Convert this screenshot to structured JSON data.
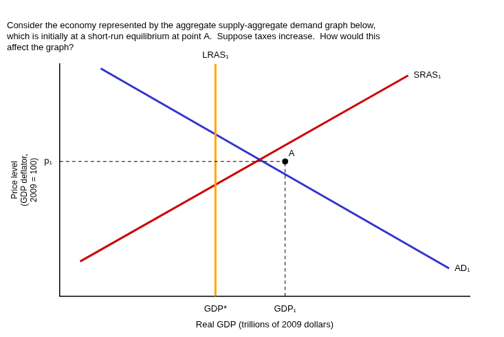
{
  "chart_data": {
    "type": "line",
    "title": "Consider the economy represented by the aggregate supply-aggregate demand graph below,\nwhich is initially at a short-run equilibrium at point A.  Suppose taxes increase.  How would this\naffect the graph?",
    "xlabel": "Real GDP (trillions of 2009 dollars)",
    "ylabel": "Price level\n(GDP deflator,\n2009 = 100)",
    "xlim": [
      0,
      10
    ],
    "ylim": [
      0,
      10
    ],
    "xticks": [
      {
        "value": 3.8,
        "label": "GDP*"
      },
      {
        "value": 5.5,
        "label": "GDP₁"
      }
    ],
    "yticks": [
      {
        "value": 5.8,
        "label": "p₁"
      }
    ],
    "grid": false,
    "series": [
      {
        "color": "#000000",
        "line_style": "dashed",
        "x": [
          0,
          5.5
        ],
        "values": [
          5.8,
          5.8
        ]
      },
      {
        "color": "#000000",
        "line_style": "dashed",
        "x": [
          5.5,
          5.5
        ],
        "values": [
          0,
          5.8
        ]
      },
      {
        "name": "LRAS₁",
        "color": "#FFA500",
        "line_style": "solid",
        "x": [
          3.8,
          3.8
        ],
        "values": [
          0,
          10
        ]
      },
      {
        "name": "SRAS₁",
        "color": "#CC0000",
        "line_style": "solid",
        "x": [
          0.5,
          8.5
        ],
        "values": [
          1.5,
          9.5
        ]
      },
      {
        "name": "AD₁",
        "color": "#3333CC",
        "line_style": "solid",
        "x": [
          1.0,
          9.5
        ],
        "values": [
          9.8,
          1.2
        ]
      },
      {
        "name": "A",
        "type": "scatter",
        "marker": "circle",
        "color": "#000000",
        "x": [
          5.5
        ],
        "values": [
          5.8
        ]
      }
    ]
  }
}
